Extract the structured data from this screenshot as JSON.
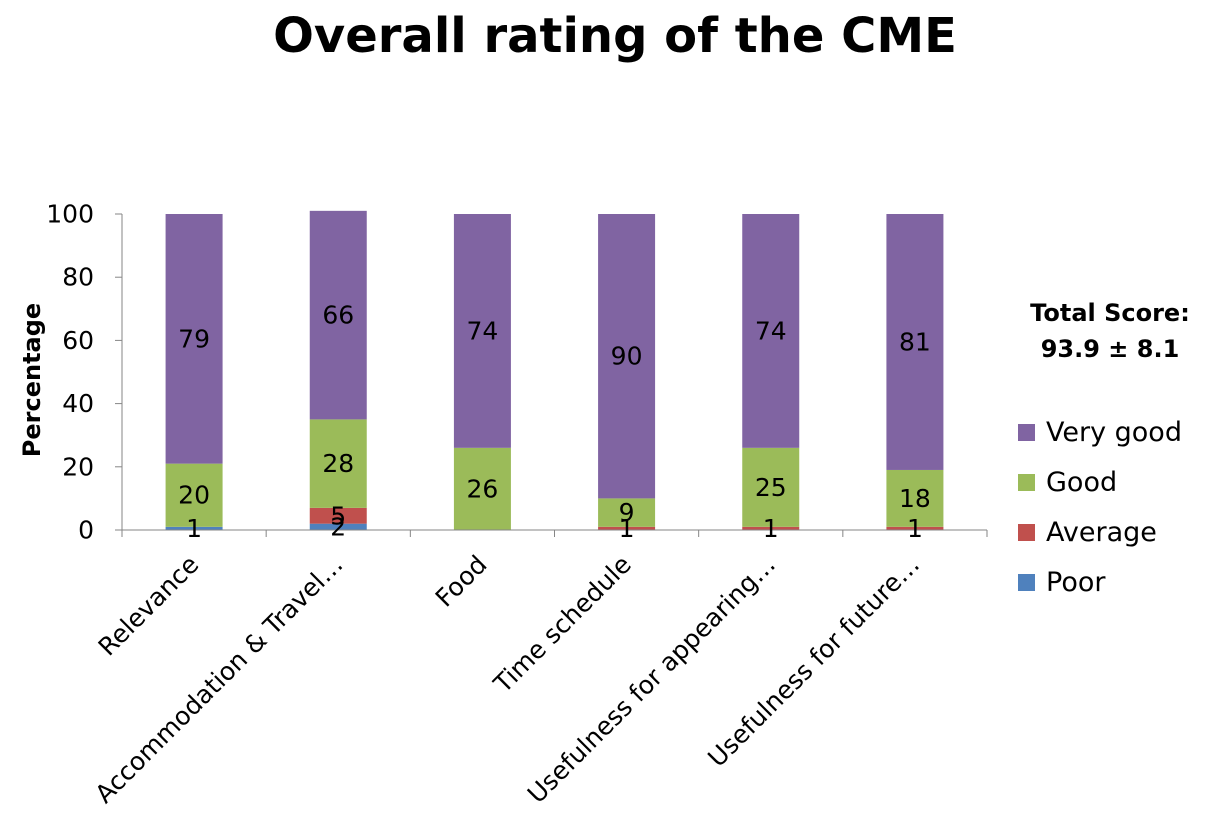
{
  "chart_data": {
    "type": "bar",
    "stacked": true,
    "title": "Overall rating of the CME",
    "ylabel": "Percentage",
    "xlabel": "",
    "ylim": [
      0,
      100
    ],
    "yticks": [
      0,
      20,
      40,
      60,
      80,
      100
    ],
    "categories": [
      "Relevance",
      "Accommodation & Travel…",
      "Food",
      "Time schedule",
      "Usefulness for appearing…",
      "Usefulness for future…"
    ],
    "series": [
      {
        "name": "Poor",
        "color": "#4F81BD",
        "values": [
          1,
          2,
          0,
          0,
          0,
          0
        ],
        "labels": [
          "1",
          "2",
          "",
          "",
          "",
          ""
        ]
      },
      {
        "name": "Average",
        "color": "#C0504D",
        "values": [
          0,
          5,
          0,
          1,
          1,
          1
        ],
        "labels": [
          "",
          "5",
          "",
          "1",
          "1",
          "1"
        ]
      },
      {
        "name": "Good",
        "color": "#9BBB59",
        "values": [
          20,
          28,
          26,
          9,
          25,
          18
        ],
        "labels": [
          "20",
          "28",
          "26",
          "9",
          "25",
          "18"
        ]
      },
      {
        "name": "Very good",
        "color": "#8064A2",
        "values": [
          79,
          66,
          74,
          90,
          74,
          81
        ],
        "labels": [
          "79",
          "66",
          "74",
          "90",
          "74",
          "81"
        ]
      }
    ],
    "legend_position": "right",
    "legend_order": [
      "Very good",
      "Good",
      "Average",
      "Poor"
    ],
    "grid": false
  },
  "annotation": {
    "line1": "Total Score:",
    "line2": "93.9 ± 8.1"
  }
}
